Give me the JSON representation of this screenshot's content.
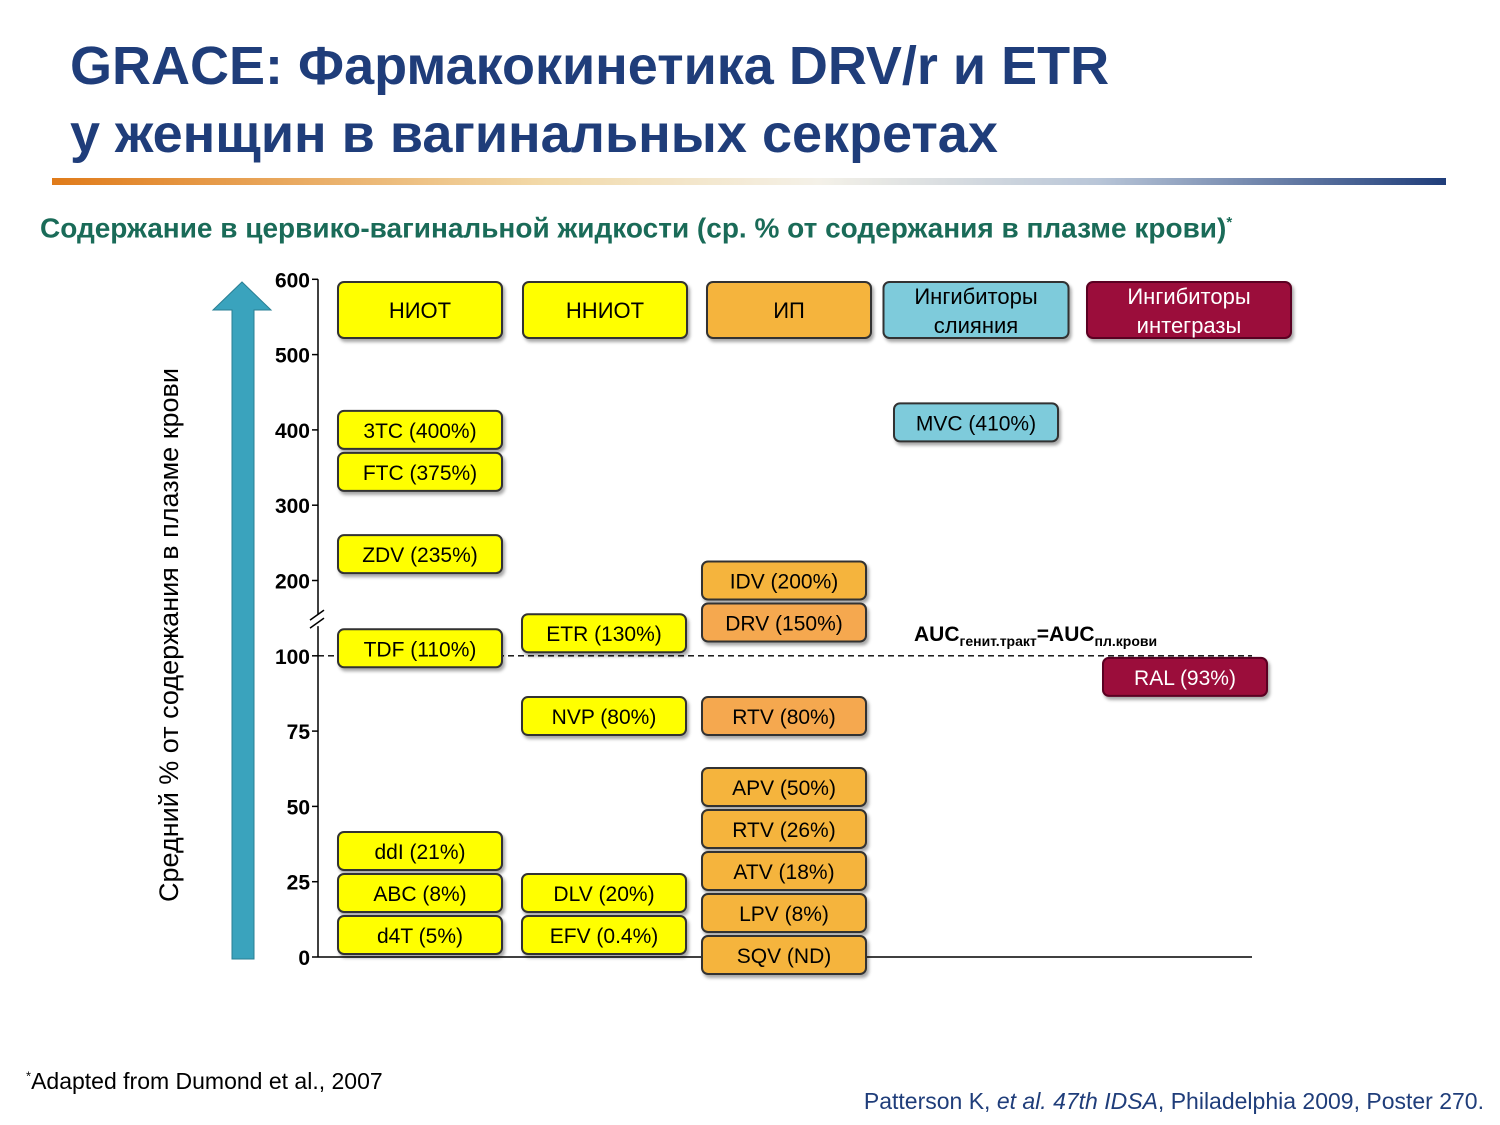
{
  "title": {
    "line1": "GRACE: Фармакокинетика DRV/r и ETR",
    "line2": "у женщин в вагинальных секретах"
  },
  "subtitle": "Содержание в цервико-вагинальной жидкости (ср. % от содержания в плазме крови)",
  "subtitle_marker": "*",
  "footnote": {
    "marker": "*",
    "text": "Adapted from Dumond et al., 2007"
  },
  "citation": {
    "part1": "Patterson K, ",
    "italic": "et al. 47th IDSA",
    "part2": ", Philadelphia 2009, Poster 270."
  },
  "chart_data": {
    "type": "table",
    "ylabel": "Средний % от содержания в плазме крови",
    "y_ticks": [
      0,
      25,
      50,
      75,
      100,
      200,
      300,
      400,
      500,
      600
    ],
    "y_axis_break_between": [
      100,
      200
    ],
    "reference_line": {
      "value": 100,
      "label_main1": "AUC",
      "label_sub1": "генит.тракт",
      "label_eq": "=AUC",
      "label_sub2": "пл.крови"
    },
    "colors": {
      "nrti": "#ffff00",
      "nnrti": "#ffff00",
      "pi": "#f5b43c",
      "pi_light": "#f5a850",
      "fusion": "#7ecbdb",
      "integrase": "#9b0a3a",
      "arrow": "#3aa3bd"
    },
    "categories": [
      {
        "name": "НИОТ",
        "color": "#ffff00",
        "text_color": "#000000",
        "drugs": [
          {
            "label": "3TC (400%)",
            "value": 400
          },
          {
            "label": "FTC (375%)",
            "value": 375
          },
          {
            "label": "ZDV (235%)",
            "value": 235
          },
          {
            "label": "TDF (110%)",
            "value": 110
          },
          {
            "label": "ddI (21%)",
            "value": 21
          },
          {
            "label": "ABC (8%)",
            "value": 8
          },
          {
            "label": "d4T (5%)",
            "value": 5
          }
        ]
      },
      {
        "name": "ННИОТ",
        "color": "#ffff00",
        "text_color": "#000000",
        "drugs": [
          {
            "label": "ETR (130%)",
            "value": 130
          },
          {
            "label": "NVP (80%)",
            "value": 80
          },
          {
            "label": "DLV (20%)",
            "value": 20
          },
          {
            "label": "EFV (0.4%)",
            "value": 0.4
          }
        ]
      },
      {
        "name": "ИП",
        "color": "#f5b43c",
        "text_color": "#000000",
        "drugs": [
          {
            "label": "IDV (200%)",
            "value": 200
          },
          {
            "label": "DRV (150%)",
            "value": 150
          },
          {
            "label": "RTV (80%)",
            "value": 80
          },
          {
            "label": "APV (50%)",
            "value": 50
          },
          {
            "label": "RTV (26%)",
            "value": 26
          },
          {
            "label": "ATV (18%)",
            "value": 18
          },
          {
            "label": "LPV (8%)",
            "value": 8
          },
          {
            "label": "SQV (ND)",
            "value": null
          }
        ]
      },
      {
        "name": "Ингибиторы слияния",
        "name_line1": "Ингибиторы",
        "name_line2": "слияния",
        "color": "#7ecbdb",
        "text_color": "#000000",
        "drugs": [
          {
            "label": "MVC (410%)",
            "value": 410
          }
        ]
      },
      {
        "name": "Ингибиторы интегразы",
        "name_line1": "Ингибиторы",
        "name_line2": "интегразы",
        "color": "#9b0a3a",
        "text_color": "#ffffff",
        "drugs": [
          {
            "label": "RAL (93%)",
            "value": 93
          }
        ]
      }
    ]
  }
}
